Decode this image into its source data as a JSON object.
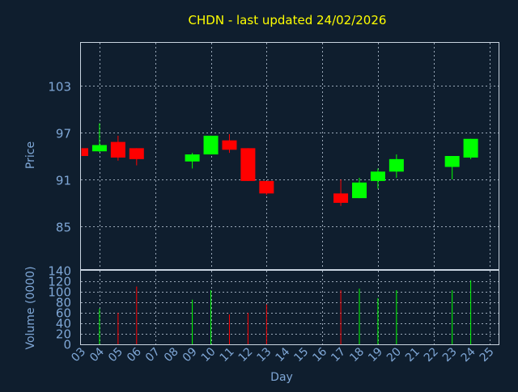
{
  "title": "CHDN - last updated 24/02/2026",
  "colors": {
    "background": "#0f1e2e",
    "up": "#00ff00",
    "down": "#ff0000",
    "text": "#7fa7d6",
    "title": "#ffff00"
  },
  "chart_data": [
    {
      "type": "candlestick",
      "ylabel": "Price",
      "ylim": [
        79.5,
        108.5
      ],
      "yticks": [
        85,
        91,
        97,
        103
      ],
      "grid": true,
      "candles": [
        {
          "day": 3,
          "open": 95.0,
          "high": 95.0,
          "low": 94.0,
          "close": 94.0
        },
        {
          "day": 4,
          "open": 94.6,
          "high": 98.2,
          "low": 94.5,
          "close": 95.4
        },
        {
          "day": 5,
          "open": 95.8,
          "high": 96.6,
          "low": 93.4,
          "close": 93.8
        },
        {
          "day": 6,
          "open": 95.0,
          "high": 95.0,
          "low": 92.8,
          "close": 93.6
        },
        {
          "day": 9,
          "open": 93.3,
          "high": 94.4,
          "low": 92.4,
          "close": 94.2
        },
        {
          "day": 10,
          "open": 94.2,
          "high": 96.6,
          "low": 94.2,
          "close": 96.6
        },
        {
          "day": 11,
          "open": 96.0,
          "high": 96.8,
          "low": 94.4,
          "close": 94.8
        },
        {
          "day": 12,
          "open": 95.0,
          "high": 95.0,
          "low": 90.8,
          "close": 90.8
        },
        {
          "day": 13,
          "open": 90.8,
          "high": 90.8,
          "low": 89.0,
          "close": 89.2
        },
        {
          "day": 17,
          "open": 89.2,
          "high": 91.0,
          "low": 87.6,
          "close": 88.0
        },
        {
          "day": 18,
          "open": 88.6,
          "high": 91.2,
          "low": 88.6,
          "close": 90.6
        },
        {
          "day": 19,
          "open": 90.8,
          "high": 92.4,
          "low": 89.8,
          "close": 92.0
        },
        {
          "day": 20,
          "open": 92.0,
          "high": 94.2,
          "low": 91.2,
          "close": 93.6
        },
        {
          "day": 23,
          "open": 92.6,
          "high": 94.0,
          "low": 91.0,
          "close": 94.0
        },
        {
          "day": 24,
          "open": 93.8,
          "high": 96.2,
          "low": 93.6,
          "close": 96.2
        }
      ]
    },
    {
      "type": "bar",
      "ylabel": "Volume (0000)",
      "xlabel": "Day",
      "ylim": [
        0,
        140
      ],
      "yticks": [
        0,
        20,
        40,
        60,
        80,
        100,
        120,
        140
      ],
      "grid": true,
      "categories": [
        "03",
        "04",
        "05",
        "06",
        "07",
        "08",
        "09",
        "10",
        "11",
        "12",
        "13",
        "14",
        "15",
        "16",
        "17",
        "18",
        "19",
        "20",
        "21",
        "22",
        "23",
        "24",
        "25"
      ],
      "volumes": [
        {
          "day": 4,
          "value": 68,
          "direction": "up"
        },
        {
          "day": 5,
          "value": 60,
          "direction": "down"
        },
        {
          "day": 6,
          "value": 110,
          "direction": "down"
        },
        {
          "day": 9,
          "value": 85,
          "direction": "up"
        },
        {
          "day": 10,
          "value": 103,
          "direction": "up"
        },
        {
          "day": 11,
          "value": 57,
          "direction": "down"
        },
        {
          "day": 12,
          "value": 60,
          "direction": "down"
        },
        {
          "day": 13,
          "value": 76,
          "direction": "down"
        },
        {
          "day": 17,
          "value": 103,
          "direction": "down"
        },
        {
          "day": 18,
          "value": 106,
          "direction": "up"
        },
        {
          "day": 19,
          "value": 88,
          "direction": "up"
        },
        {
          "day": 20,
          "value": 103,
          "direction": "up"
        },
        {
          "day": 23,
          "value": 103,
          "direction": "up"
        },
        {
          "day": 24,
          "value": 122,
          "direction": "up"
        }
      ]
    }
  ]
}
